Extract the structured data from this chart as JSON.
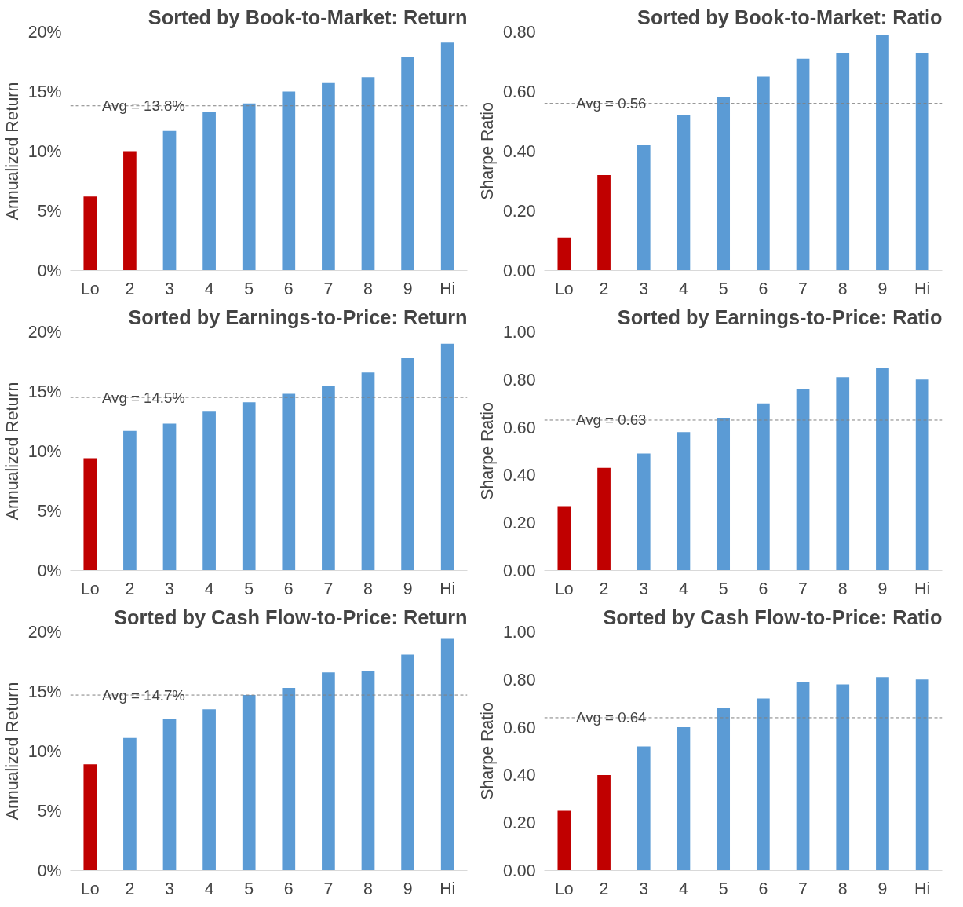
{
  "chart_data": [
    {
      "type": "bar",
      "title": "Sorted by Book-to-Market: Return",
      "ylabel": "Annualized Return",
      "categories": [
        "Lo",
        "2",
        "3",
        "4",
        "5",
        "6",
        "7",
        "8",
        "9",
        "Hi"
      ],
      "values": [
        6.2,
        10.0,
        11.7,
        13.3,
        14.0,
        15.0,
        15.7,
        16.2,
        17.9,
        19.1
      ],
      "colors": [
        "#c00000",
        "#c00000",
        "#5b9bd5",
        "#5b9bd5",
        "#5b9bd5",
        "#5b9bd5",
        "#5b9bd5",
        "#5b9bd5",
        "#5b9bd5",
        "#5b9bd5"
      ],
      "ylim": [
        0,
        20
      ],
      "yticks": [
        {
          "value": 0,
          "label": "0%"
        },
        {
          "value": 5,
          "label": "5%"
        },
        {
          "value": 10,
          "label": "10%"
        },
        {
          "value": 15,
          "label": "15%"
        },
        {
          "value": 20,
          "label": "20%"
        }
      ],
      "ref_lines": [
        {
          "axis": "y",
          "value": 13.8,
          "label": "Avg = 13.8%",
          "color": "#808080",
          "line_style": "dashed"
        }
      ]
    },
    {
      "type": "bar",
      "title": "Sorted by Book-to-Market: Ratio",
      "ylabel": "Sharpe Ratio",
      "categories": [
        "Lo",
        "2",
        "3",
        "4",
        "5",
        "6",
        "7",
        "8",
        "9",
        "Hi"
      ],
      "values": [
        0.11,
        0.32,
        0.42,
        0.52,
        0.58,
        0.65,
        0.71,
        0.73,
        0.79,
        0.73
      ],
      "colors": [
        "#c00000",
        "#c00000",
        "#5b9bd5",
        "#5b9bd5",
        "#5b9bd5",
        "#5b9bd5",
        "#5b9bd5",
        "#5b9bd5",
        "#5b9bd5",
        "#5b9bd5"
      ],
      "ylim": [
        0,
        0.8
      ],
      "yticks": [
        {
          "value": 0,
          "label": "0.00"
        },
        {
          "value": 0.2,
          "label": "0.20"
        },
        {
          "value": 0.4,
          "label": "0.40"
        },
        {
          "value": 0.6,
          "label": "0.60"
        },
        {
          "value": 0.8,
          "label": "0.80"
        }
      ],
      "ref_lines": [
        {
          "axis": "y",
          "value": 0.56,
          "label": "Avg = 0.56",
          "color": "#808080",
          "line_style": "dashed"
        }
      ]
    },
    {
      "type": "bar",
      "title": "Sorted by Earnings-to-Price: Return",
      "ylabel": "Annualized Return",
      "categories": [
        "Lo",
        "2",
        "3",
        "4",
        "5",
        "6",
        "7",
        "8",
        "9",
        "Hi"
      ],
      "values": [
        9.4,
        11.7,
        12.3,
        13.3,
        14.1,
        14.8,
        15.5,
        16.6,
        17.8,
        19.0
      ],
      "colors": [
        "#c00000",
        "#5b9bd5",
        "#5b9bd5",
        "#5b9bd5",
        "#5b9bd5",
        "#5b9bd5",
        "#5b9bd5",
        "#5b9bd5",
        "#5b9bd5",
        "#5b9bd5"
      ],
      "ylim": [
        0,
        20
      ],
      "yticks": [
        {
          "value": 0,
          "label": "0%"
        },
        {
          "value": 5,
          "label": "5%"
        },
        {
          "value": 10,
          "label": "10%"
        },
        {
          "value": 15,
          "label": "15%"
        },
        {
          "value": 20,
          "label": "20%"
        }
      ],
      "ref_lines": [
        {
          "axis": "y",
          "value": 14.5,
          "label": "Avg = 14.5%",
          "color": "#808080",
          "line_style": "dashed"
        }
      ]
    },
    {
      "type": "bar",
      "title": "Sorted by Earnings-to-Price: Ratio",
      "ylabel": "Sharpe Ratio",
      "categories": [
        "Lo",
        "2",
        "3",
        "4",
        "5",
        "6",
        "7",
        "8",
        "9",
        "Hi"
      ],
      "values": [
        0.27,
        0.43,
        0.49,
        0.58,
        0.64,
        0.7,
        0.76,
        0.81,
        0.85,
        0.8
      ],
      "colors": [
        "#c00000",
        "#c00000",
        "#5b9bd5",
        "#5b9bd5",
        "#5b9bd5",
        "#5b9bd5",
        "#5b9bd5",
        "#5b9bd5",
        "#5b9bd5",
        "#5b9bd5"
      ],
      "ylim": [
        0,
        1
      ],
      "yticks": [
        {
          "value": 0,
          "label": "0.00"
        },
        {
          "value": 0.2,
          "label": "0.20"
        },
        {
          "value": 0.4,
          "label": "0.40"
        },
        {
          "value": 0.6,
          "label": "0.60"
        },
        {
          "value": 0.8,
          "label": "0.80"
        },
        {
          "value": 1,
          "label": "1.00"
        }
      ],
      "ref_lines": [
        {
          "axis": "y",
          "value": 0.63,
          "label": "Avg = 0.63",
          "color": "#808080",
          "line_style": "dashed"
        }
      ]
    },
    {
      "type": "bar",
      "title": "Sorted by Cash Flow-to-Price: Return",
      "ylabel": "Annualized Return",
      "categories": [
        "Lo",
        "2",
        "3",
        "4",
        "5",
        "6",
        "7",
        "8",
        "9",
        "Hi"
      ],
      "values": [
        8.9,
        11.1,
        12.7,
        13.5,
        14.7,
        15.3,
        16.6,
        16.7,
        18.1,
        19.4
      ],
      "colors": [
        "#c00000",
        "#5b9bd5",
        "#5b9bd5",
        "#5b9bd5",
        "#5b9bd5",
        "#5b9bd5",
        "#5b9bd5",
        "#5b9bd5",
        "#5b9bd5",
        "#5b9bd5"
      ],
      "ylim": [
        0,
        20
      ],
      "yticks": [
        {
          "value": 0,
          "label": "0%"
        },
        {
          "value": 5,
          "label": "5%"
        },
        {
          "value": 10,
          "label": "10%"
        },
        {
          "value": 15,
          "label": "15%"
        },
        {
          "value": 20,
          "label": "20%"
        }
      ],
      "ref_lines": [
        {
          "axis": "y",
          "value": 14.7,
          "label": "Avg = 14.7%",
          "color": "#808080",
          "line_style": "dashed"
        }
      ]
    },
    {
      "type": "bar",
      "title": "Sorted by Cash Flow-to-Price: Ratio",
      "ylabel": "Sharpe Ratio",
      "categories": [
        "Lo",
        "2",
        "3",
        "4",
        "5",
        "6",
        "7",
        "8",
        "9",
        "Hi"
      ],
      "values": [
        0.25,
        0.4,
        0.52,
        0.6,
        0.68,
        0.72,
        0.79,
        0.78,
        0.81,
        0.8
      ],
      "colors": [
        "#c00000",
        "#c00000",
        "#5b9bd5",
        "#5b9bd5",
        "#5b9bd5",
        "#5b9bd5",
        "#5b9bd5",
        "#5b9bd5",
        "#5b9bd5",
        "#5b9bd5"
      ],
      "ylim": [
        0,
        1
      ],
      "yticks": [
        {
          "value": 0,
          "label": "0.00"
        },
        {
          "value": 0.2,
          "label": "0.20"
        },
        {
          "value": 0.4,
          "label": "0.40"
        },
        {
          "value": 0.6,
          "label": "0.60"
        },
        {
          "value": 0.8,
          "label": "0.80"
        },
        {
          "value": 1,
          "label": "1.00"
        }
      ],
      "ref_lines": [
        {
          "axis": "y",
          "value": 0.64,
          "label": "Avg = 0.64",
          "color": "#808080",
          "line_style": "dashed"
        }
      ]
    }
  ]
}
